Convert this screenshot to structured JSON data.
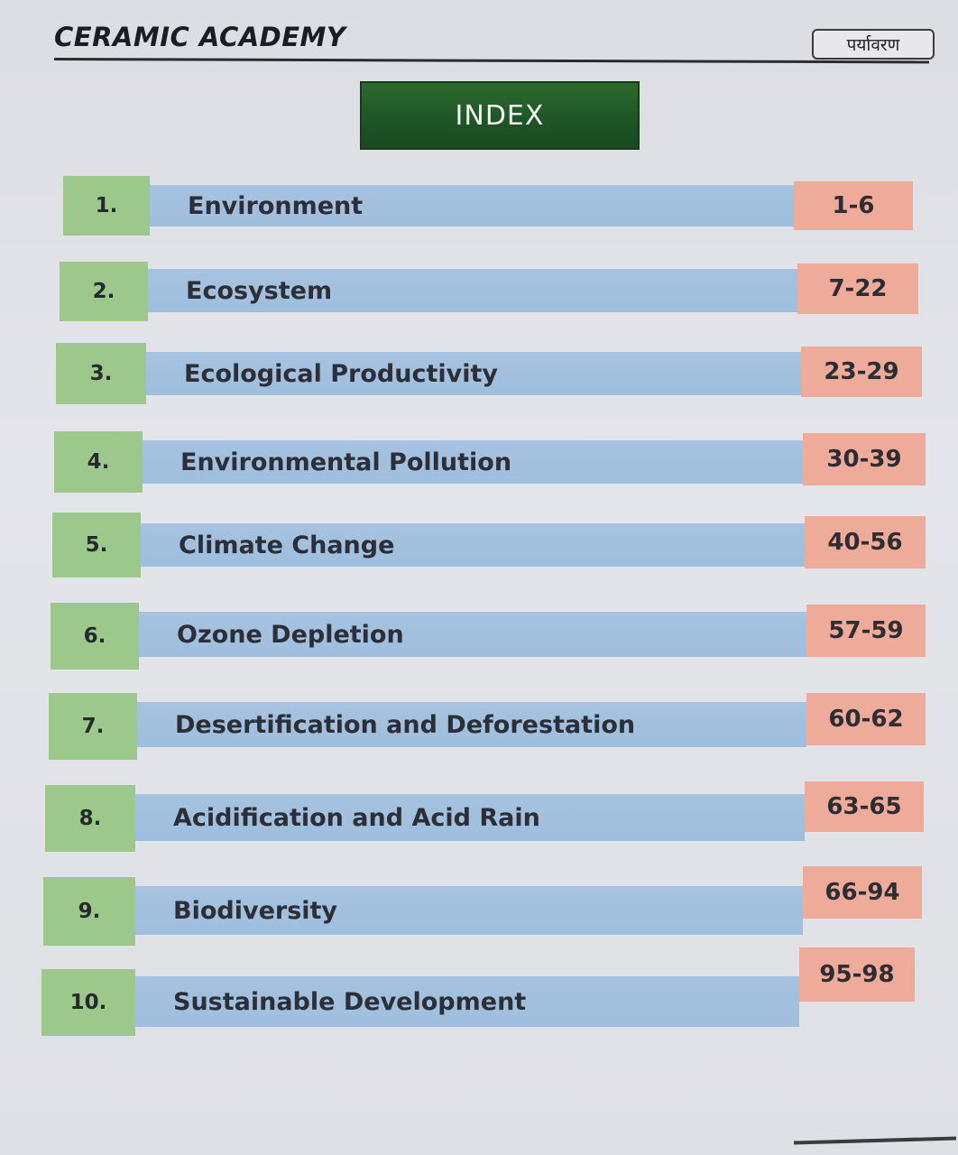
{
  "header": {
    "brand": "CERAMIC ACADEMY",
    "section_tag": "पर्यावरण"
  },
  "index_title": "INDEX",
  "entries": [
    {
      "number": "1.",
      "title": "Environment",
      "pages": "1-6"
    },
    {
      "number": "2.",
      "title": "Ecosystem",
      "pages": "7-22"
    },
    {
      "number": "3.",
      "title": "Ecological Productivity",
      "pages": "23-29"
    },
    {
      "number": "4.",
      "title": "Environmental Pollution",
      "pages": "30-39"
    },
    {
      "number": "5.",
      "title": "Climate Change",
      "pages": "40-56"
    },
    {
      "number": "6.",
      "title": "Ozone Depletion",
      "pages": "57-59"
    },
    {
      "number": "7.",
      "title": "Desertification and Deforestation",
      "pages": "60-62"
    },
    {
      "number": "8.",
      "title": "Acidification and Acid Rain",
      "pages": "63-65"
    },
    {
      "number": "9.",
      "title": "Biodiversity",
      "pages": "66-94"
    },
    {
      "number": "10.",
      "title": "Sustainable Development",
      "pages": "95-98"
    }
  ],
  "colors": {
    "number_cell": "#9cc98b",
    "title_bar": "#a6c2e0",
    "pages_cell": "#eeab99",
    "index_box": "#1f5426"
  }
}
